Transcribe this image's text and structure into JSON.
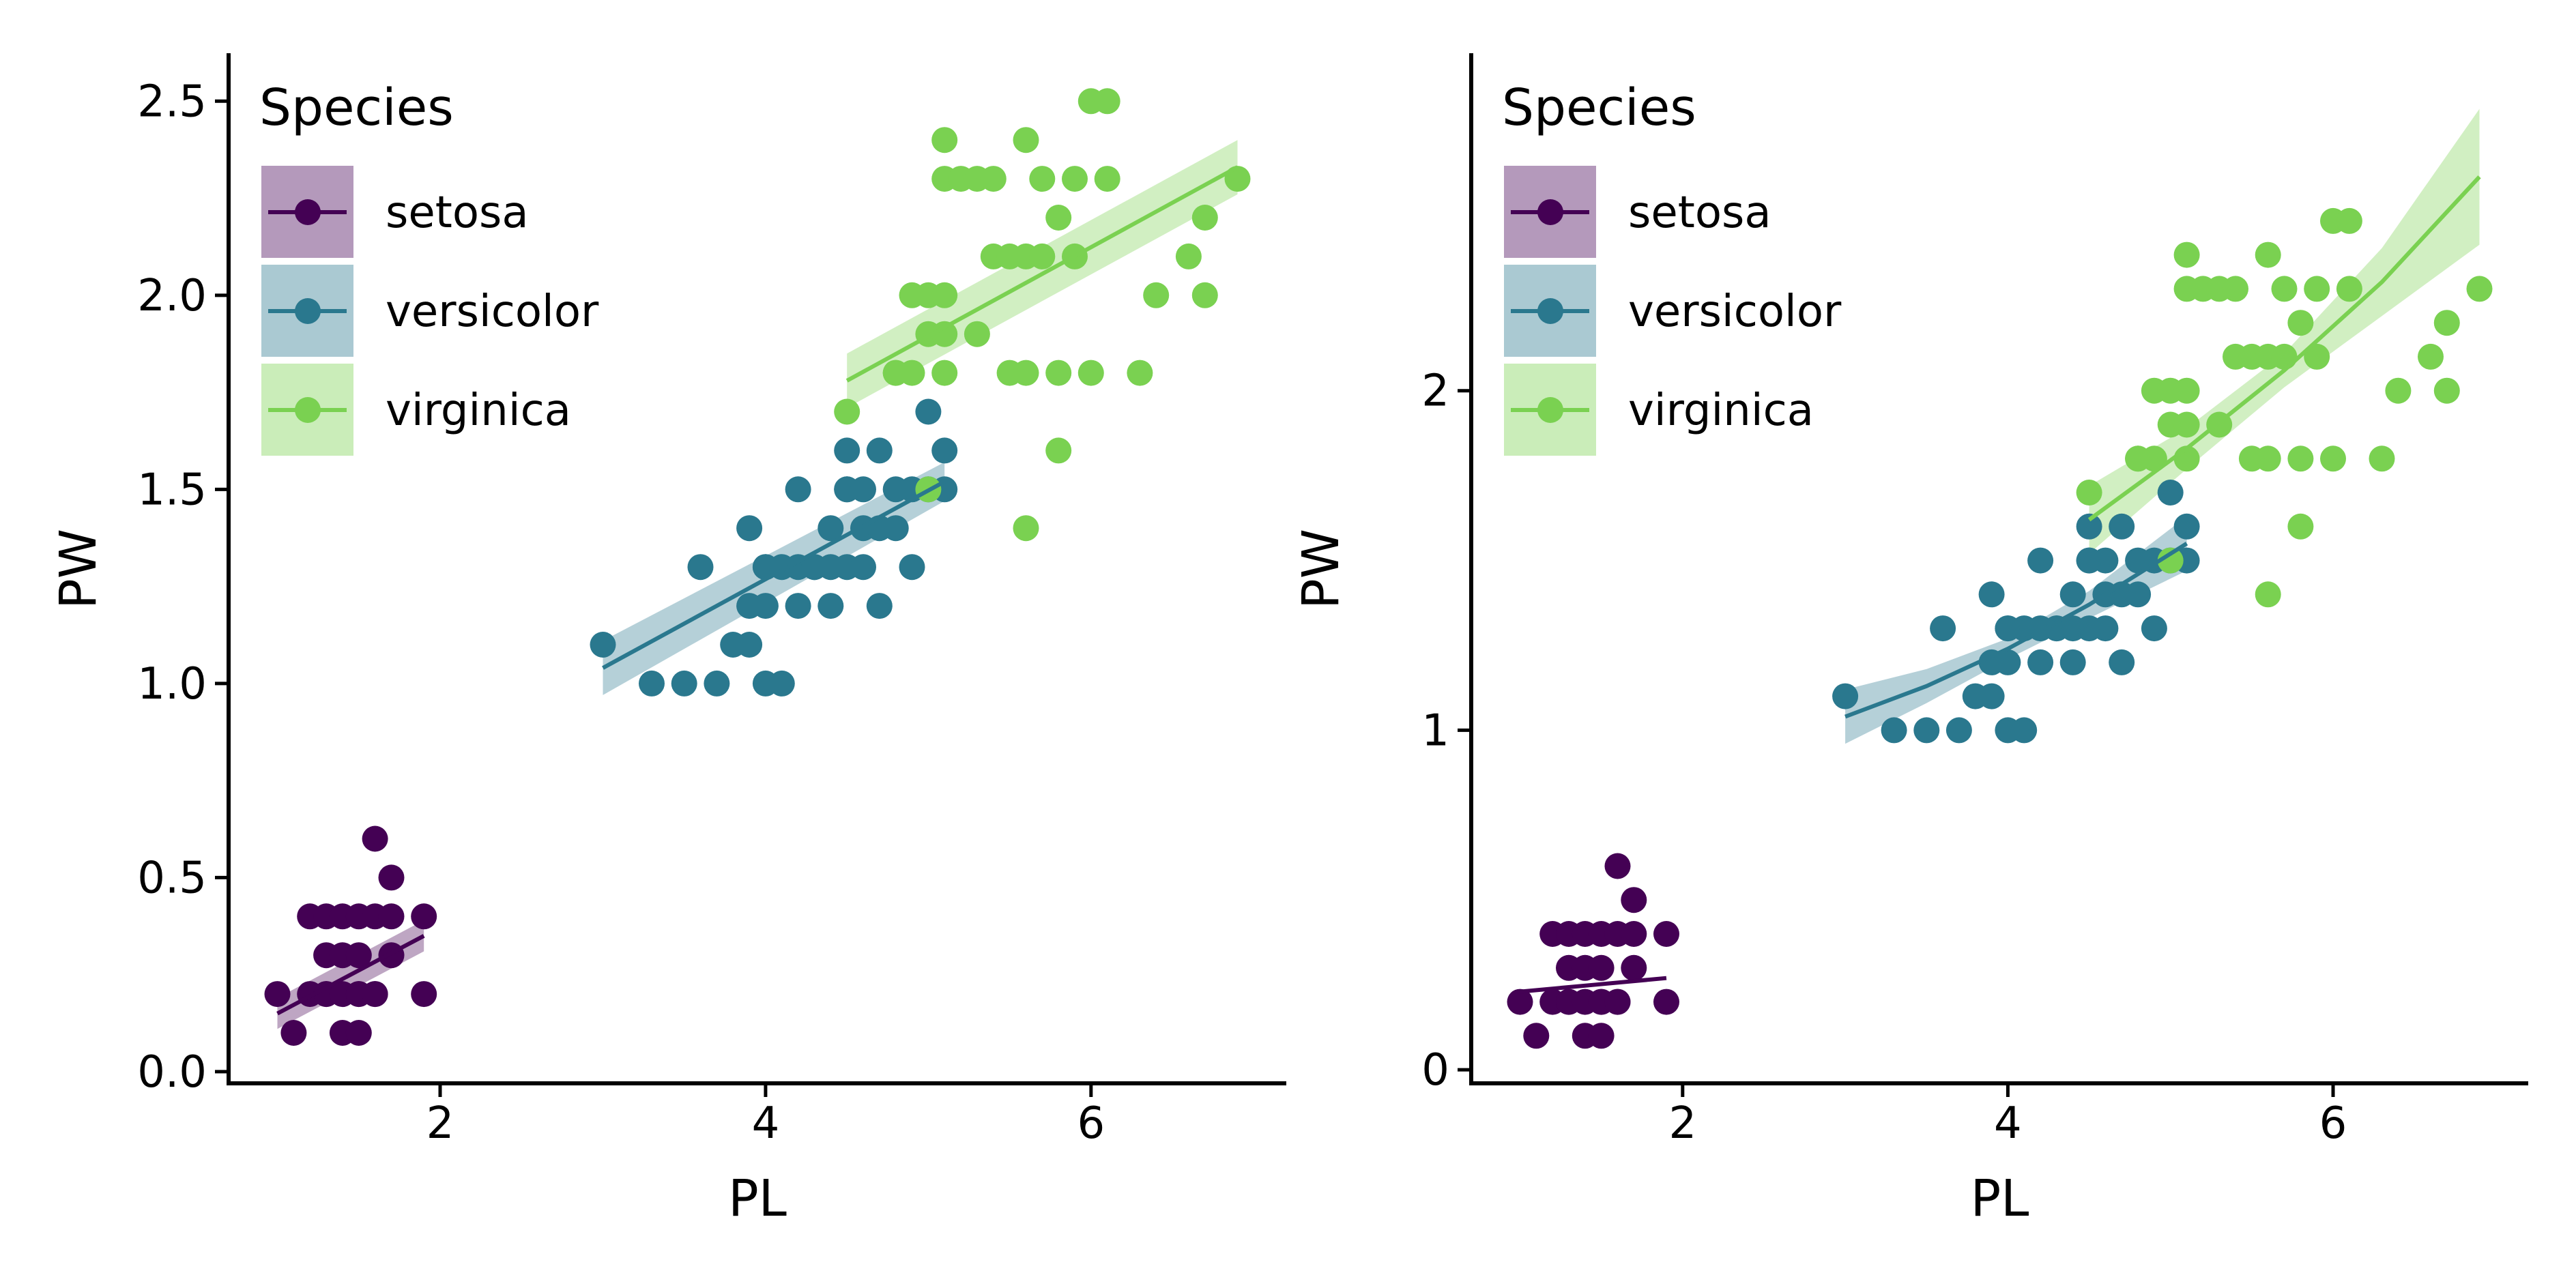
{
  "colors": {
    "setosa": "#440154",
    "versicolor": "#2A788E",
    "virginica": "#7AD151",
    "axis": "#000000",
    "background": "#FFFFFF"
  },
  "chart_data": [
    {
      "type": "scatter",
      "xlabel": "PL",
      "ylabel": "PW",
      "xlim": [
        0.7,
        7.2
      ],
      "ylim": [
        -0.03,
        2.62
      ],
      "x_ticks": [
        2,
        4,
        6
      ],
      "x_tick_labels": [
        "2",
        "4",
        "6"
      ],
      "y_ticks": [
        0,
        0.5,
        1,
        1.5,
        2,
        2.5
      ],
      "y_tick_labels": [
        "0.0",
        "0.5",
        "1.0",
        "1.5",
        "2.0",
        "2.5"
      ],
      "grid": false,
      "legend": {
        "title": "Species",
        "position": "top-left",
        "entries": [
          "setosa",
          "versicolor",
          "virginica"
        ]
      },
      "fit": "linear regression with confidence band",
      "series": [
        {
          "name": "setosa",
          "color": "#440154",
          "x": [
            1.0,
            1.1,
            1.2,
            1.2,
            1.3,
            1.3,
            1.3,
            1.3,
            1.4,
            1.4,
            1.4,
            1.4,
            1.5,
            1.5,
            1.5,
            1.5,
            1.5,
            1.6,
            1.6,
            1.6,
            1.6,
            1.7,
            1.7,
            1.7,
            1.9,
            1.9
          ],
          "y": [
            0.2,
            0.1,
            0.2,
            0.4,
            0.2,
            0.3,
            0.4,
            0.2,
            0.1,
            0.2,
            0.3,
            0.4,
            0.1,
            0.2,
            0.3,
            0.4,
            0.2,
            0.2,
            0.4,
            0.6,
            0.2,
            0.3,
            0.4,
            0.5,
            0.2,
            0.4
          ],
          "fit_line": {
            "x": [
              1.0,
              1.9
            ],
            "y": [
              0.15,
              0.35
            ]
          },
          "band_halfwidth": [
            0.04,
            0.04
          ]
        },
        {
          "name": "versicolor",
          "color": "#2A788E",
          "x": [
            3.0,
            3.3,
            3.5,
            3.6,
            3.7,
            3.8,
            3.9,
            3.9,
            3.9,
            4.0,
            4.0,
            4.0,
            4.0,
            4.1,
            4.1,
            4.2,
            4.2,
            4.2,
            4.3,
            4.3,
            4.4,
            4.4,
            4.4,
            4.5,
            4.5,
            4.5,
            4.5,
            4.6,
            4.6,
            4.6,
            4.7,
            4.7,
            4.7,
            4.8,
            4.8,
            4.9,
            4.9,
            5.0,
            5.0,
            5.1,
            5.1
          ],
          "y": [
            1.1,
            1.0,
            1.0,
            1.3,
            1.0,
            1.1,
            1.1,
            1.2,
            1.4,
            1.0,
            1.2,
            1.3,
            1.3,
            1.0,
            1.3,
            1.2,
            1.3,
            1.5,
            1.3,
            1.3,
            1.2,
            1.3,
            1.4,
            1.3,
            1.5,
            1.6,
            1.5,
            1.3,
            1.4,
            1.5,
            1.2,
            1.4,
            1.6,
            1.4,
            1.5,
            1.3,
            1.5,
            1.5,
            1.7,
            1.6,
            1.5
          ],
          "fit_line": {
            "x": [
              3.0,
              5.1
            ],
            "y": [
              1.04,
              1.52
            ]
          },
          "band_halfwidth": [
            0.07,
            0.05
          ]
        },
        {
          "name": "virginica",
          "color": "#7AD151",
          "x": [
            4.5,
            4.8,
            4.8,
            4.9,
            4.9,
            5.0,
            5.0,
            5.0,
            5.1,
            5.1,
            5.1,
            5.1,
            5.1,
            5.2,
            5.3,
            5.3,
            5.4,
            5.4,
            5.5,
            5.5,
            5.6,
            5.6,
            5.6,
            5.6,
            5.7,
            5.7,
            5.8,
            5.8,
            5.8,
            5.9,
            5.9,
            6.0,
            6.0,
            6.1,
            6.1,
            6.3,
            6.4,
            6.6,
            6.7,
            6.7,
            6.9
          ],
          "y": [
            1.7,
            1.8,
            1.8,
            1.8,
            2.0,
            1.5,
            2.0,
            1.9,
            1.9,
            2.0,
            2.3,
            2.4,
            1.8,
            2.3,
            1.9,
            2.3,
            2.1,
            2.3,
            2.1,
            1.8,
            1.4,
            2.1,
            2.4,
            1.8,
            2.1,
            2.3,
            1.6,
            2.2,
            1.8,
            2.1,
            2.3,
            1.8,
            2.5,
            2.5,
            2.3,
            1.8,
            2.0,
            2.1,
            2.2,
            2.0,
            2.3
          ],
          "fit_line": {
            "x": [
              4.5,
              6.9
            ],
            "y": [
              1.78,
              2.33
            ]
          },
          "band_halfwidth": [
            0.07,
            0.07
          ]
        }
      ]
    },
    {
      "type": "scatter",
      "xlabel": "PL",
      "ylabel": "PW",
      "xlim": [
        0.7,
        7.2
      ],
      "ylim": [
        -0.04,
        2.99
      ],
      "x_ticks": [
        2,
        4,
        6
      ],
      "x_tick_labels": [
        "2",
        "4",
        "6"
      ],
      "y_ticks": [
        0,
        1,
        2
      ],
      "y_tick_labels": [
        "0",
        "1",
        "2"
      ],
      "grid": false,
      "legend": {
        "title": "Species",
        "position": "top-left",
        "entries": [
          "setosa",
          "versicolor",
          "virginica"
        ]
      },
      "fit": "curved regression with confidence band",
      "series": [
        {
          "name": "setosa",
          "color": "#440154",
          "x": [
            1.0,
            1.1,
            1.2,
            1.2,
            1.3,
            1.3,
            1.3,
            1.3,
            1.4,
            1.4,
            1.4,
            1.4,
            1.5,
            1.5,
            1.5,
            1.5,
            1.5,
            1.6,
            1.6,
            1.6,
            1.6,
            1.7,
            1.7,
            1.7,
            1.9,
            1.9
          ],
          "y": [
            0.2,
            0.1,
            0.2,
            0.4,
            0.2,
            0.3,
            0.4,
            0.2,
            0.1,
            0.2,
            0.3,
            0.4,
            0.1,
            0.2,
            0.3,
            0.4,
            0.2,
            0.2,
            0.4,
            0.6,
            0.2,
            0.3,
            0.4,
            0.5,
            0.2,
            0.4
          ],
          "fit_line": {
            "x": [
              1.0,
              1.45,
              1.9
            ],
            "y": [
              0.23,
              0.25,
              0.27
            ]
          },
          "band_halfwidth": [
            0.0,
            0.0,
            0.0
          ]
        },
        {
          "name": "versicolor",
          "color": "#2A788E",
          "x": [
            3.0,
            3.3,
            3.5,
            3.6,
            3.7,
            3.8,
            3.9,
            3.9,
            3.9,
            4.0,
            4.0,
            4.0,
            4.0,
            4.1,
            4.1,
            4.2,
            4.2,
            4.2,
            4.3,
            4.3,
            4.4,
            4.4,
            4.4,
            4.5,
            4.5,
            4.5,
            4.5,
            4.6,
            4.6,
            4.6,
            4.7,
            4.7,
            4.7,
            4.8,
            4.8,
            4.9,
            4.9,
            5.0,
            5.0,
            5.1,
            5.1
          ],
          "y": [
            1.1,
            1.0,
            1.0,
            1.3,
            1.0,
            1.1,
            1.1,
            1.2,
            1.4,
            1.0,
            1.2,
            1.3,
            1.3,
            1.0,
            1.3,
            1.2,
            1.3,
            1.5,
            1.3,
            1.3,
            1.2,
            1.3,
            1.4,
            1.3,
            1.5,
            1.6,
            1.5,
            1.3,
            1.4,
            1.5,
            1.2,
            1.4,
            1.6,
            1.4,
            1.5,
            1.3,
            1.5,
            1.5,
            1.7,
            1.6,
            1.5
          ],
          "fit_line": {
            "x": [
              3.0,
              3.5,
              4.0,
              4.5,
              5.1
            ],
            "y": [
              1.04,
              1.13,
              1.24,
              1.37,
              1.55
            ]
          },
          "band_halfwidth": [
            0.08,
            0.05,
            0.03,
            0.04,
            0.08
          ]
        },
        {
          "name": "virginica",
          "color": "#7AD151",
          "x": [
            4.5,
            4.8,
            4.8,
            4.9,
            4.9,
            5.0,
            5.0,
            5.0,
            5.1,
            5.1,
            5.1,
            5.1,
            5.1,
            5.2,
            5.3,
            5.3,
            5.4,
            5.4,
            5.5,
            5.5,
            5.6,
            5.6,
            5.6,
            5.6,
            5.7,
            5.7,
            5.8,
            5.8,
            5.8,
            5.9,
            5.9,
            6.0,
            6.0,
            6.1,
            6.1,
            6.3,
            6.4,
            6.6,
            6.7,
            6.7,
            6.9
          ],
          "y": [
            1.7,
            1.8,
            1.8,
            1.8,
            2.0,
            1.5,
            2.0,
            1.9,
            1.9,
            2.0,
            2.3,
            2.4,
            1.8,
            2.3,
            1.9,
            2.3,
            2.1,
            2.3,
            2.1,
            1.8,
            1.4,
            2.1,
            2.4,
            1.8,
            2.1,
            2.3,
            1.6,
            2.2,
            1.8,
            2.1,
            2.3,
            1.8,
            2.5,
            2.5,
            2.3,
            1.8,
            2.0,
            2.1,
            2.2,
            2.0,
            2.3
          ],
          "fit_line": {
            "x": [
              4.5,
              5.1,
              5.7,
              6.3,
              6.9
            ],
            "y": [
              1.62,
              1.83,
              2.06,
              2.32,
              2.63
            ]
          },
          "band_halfwidth": [
            0.1,
            0.06,
            0.05,
            0.1,
            0.2
          ]
        }
      ]
    }
  ]
}
